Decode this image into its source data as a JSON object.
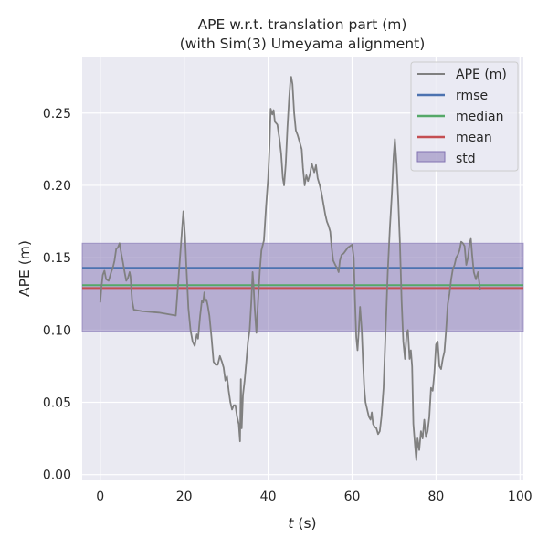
{
  "chart_data": {
    "type": "line",
    "title_line1": "APE w.r.t. translation part (m)",
    "title_line2": "(with Sim(3) Umeyama alignment)",
    "xlabel_var": "t",
    "xlabel_unit": " (s)",
    "ylabel": "APE (m)",
    "xlim": [
      -4.3,
      100.8
    ],
    "ylim": [
      -0.004,
      0.289
    ],
    "xticks": [
      0,
      20,
      40,
      60,
      80,
      100
    ],
    "yticks": [
      0.0,
      0.05,
      0.1,
      0.15,
      0.2,
      0.25
    ],
    "ytick_labels": [
      "0.00",
      "0.05",
      "0.10",
      "0.15",
      "0.20",
      "0.25"
    ],
    "grid": true,
    "legend_position": "top-right",
    "stats": {
      "rmse": 0.143,
      "median": 0.131,
      "mean": 0.129,
      "std_band": [
        0.099,
        0.16
      ]
    },
    "series": [
      {
        "name": "APE (m)",
        "color": "#808080",
        "points": [
          [
            0,
            0.119
          ],
          [
            0.3,
            0.13
          ],
          [
            0.6,
            0.138
          ],
          [
            1,
            0.141
          ],
          [
            1.4,
            0.135
          ],
          [
            2,
            0.134
          ],
          [
            2.6,
            0.14
          ],
          [
            3,
            0.143
          ],
          [
            3.4,
            0.148
          ],
          [
            3.8,
            0.156
          ],
          [
            4.2,
            0.157
          ],
          [
            4.6,
            0.16
          ],
          [
            5,
            0.153
          ],
          [
            5.4,
            0.147
          ],
          [
            5.8,
            0.14
          ],
          [
            6.2,
            0.134
          ],
          [
            6.6,
            0.136
          ],
          [
            7,
            0.14
          ],
          [
            7.2,
            0.137
          ],
          [
            7.6,
            0.12
          ],
          [
            8,
            0.114
          ],
          [
            10,
            0.113
          ],
          [
            14,
            0.112
          ],
          [
            18,
            0.11
          ],
          [
            18.5,
            0.13
          ],
          [
            19,
            0.15
          ],
          [
            19.5,
            0.17
          ],
          [
            19.8,
            0.182
          ],
          [
            20.2,
            0.165
          ],
          [
            20.5,
            0.145
          ],
          [
            21,
            0.115
          ],
          [
            21.5,
            0.1
          ],
          [
            22,
            0.092
          ],
          [
            22.5,
            0.089
          ],
          [
            23,
            0.097
          ],
          [
            23.3,
            0.094
          ],
          [
            23.8,
            0.11
          ],
          [
            24.2,
            0.12
          ],
          [
            24.5,
            0.119
          ],
          [
            24.8,
            0.126
          ],
          [
            25,
            0.12
          ],
          [
            25.3,
            0.121
          ],
          [
            25.6,
            0.117
          ],
          [
            26,
            0.11
          ],
          [
            26.5,
            0.095
          ],
          [
            27,
            0.078
          ],
          [
            27.5,
            0.076
          ],
          [
            28,
            0.076
          ],
          [
            28.5,
            0.082
          ],
          [
            29,
            0.078
          ],
          [
            29.4,
            0.074
          ],
          [
            29.8,
            0.065
          ],
          [
            30.2,
            0.068
          ],
          [
            30.6,
            0.058
          ],
          [
            31,
            0.05
          ],
          [
            31.4,
            0.045
          ],
          [
            31.8,
            0.048
          ],
          [
            32.2,
            0.048
          ],
          [
            32.6,
            0.04
          ],
          [
            33,
            0.035
          ],
          [
            33.3,
            0.023
          ],
          [
            33.5,
            0.066
          ],
          [
            33.7,
            0.032
          ],
          [
            34,
            0.055
          ],
          [
            34.4,
            0.065
          ],
          [
            34.8,
            0.078
          ],
          [
            35.2,
            0.092
          ],
          [
            35.6,
            0.1
          ],
          [
            36,
            0.12
          ],
          [
            36.3,
            0.14
          ],
          [
            36.5,
            0.132
          ],
          [
            36.8,
            0.115
          ],
          [
            37.2,
            0.098
          ],
          [
            37.6,
            0.12
          ],
          [
            38,
            0.14
          ],
          [
            38.4,
            0.155
          ],
          [
            39,
            0.162
          ],
          [
            39.5,
            0.185
          ],
          [
            40,
            0.205
          ],
          [
            40.3,
            0.225
          ],
          [
            40.6,
            0.253
          ],
          [
            41,
            0.249
          ],
          [
            41.3,
            0.252
          ],
          [
            41.6,
            0.244
          ],
          [
            42.2,
            0.242
          ],
          [
            42.7,
            0.232
          ],
          [
            43.1,
            0.222
          ],
          [
            43.5,
            0.205
          ],
          [
            43.8,
            0.2
          ],
          [
            44.2,
            0.215
          ],
          [
            44.6,
            0.24
          ],
          [
            45,
            0.26
          ],
          [
            45.3,
            0.272
          ],
          [
            45.5,
            0.275
          ],
          [
            45.8,
            0.27
          ],
          [
            46.2,
            0.25
          ],
          [
            46.6,
            0.238
          ],
          [
            47,
            0.235
          ],
          [
            47.5,
            0.23
          ],
          [
            48,
            0.225
          ],
          [
            48.3,
            0.212
          ],
          [
            48.7,
            0.2
          ],
          [
            49.1,
            0.207
          ],
          [
            49.5,
            0.203
          ],
          [
            50,
            0.208
          ],
          [
            50.4,
            0.215
          ],
          [
            50.7,
            0.212
          ],
          [
            51,
            0.209
          ],
          [
            51.4,
            0.214
          ],
          [
            51.8,
            0.205
          ],
          [
            52.3,
            0.2
          ],
          [
            52.7,
            0.195
          ],
          [
            53,
            0.19
          ],
          [
            53.3,
            0.185
          ],
          [
            53.6,
            0.18
          ],
          [
            54,
            0.175
          ],
          [
            54.4,
            0.172
          ],
          [
            54.8,
            0.168
          ],
          [
            55.1,
            0.158
          ],
          [
            55.5,
            0.148
          ],
          [
            56,
            0.145
          ],
          [
            56.4,
            0.143
          ],
          [
            56.8,
            0.14
          ],
          [
            57.1,
            0.148
          ],
          [
            57.5,
            0.152
          ],
          [
            58,
            0.153
          ],
          [
            58.5,
            0.155
          ],
          [
            59,
            0.157
          ],
          [
            59.5,
            0.158
          ],
          [
            60,
            0.159
          ],
          [
            60.4,
            0.15
          ],
          [
            60.7,
            0.12
          ],
          [
            61,
            0.095
          ],
          [
            61.3,
            0.086
          ],
          [
            61.6,
            0.1
          ],
          [
            61.9,
            0.116
          ],
          [
            62.3,
            0.1
          ],
          [
            62.6,
            0.078
          ],
          [
            62.9,
            0.06
          ],
          [
            63.2,
            0.05
          ],
          [
            63.6,
            0.045
          ],
          [
            64,
            0.04
          ],
          [
            64.4,
            0.038
          ],
          [
            64.7,
            0.043
          ],
          [
            65,
            0.035
          ],
          [
            65.4,
            0.033
          ],
          [
            65.8,
            0.032
          ],
          [
            66.2,
            0.028
          ],
          [
            66.6,
            0.03
          ],
          [
            67,
            0.04
          ],
          [
            67.5,
            0.06
          ],
          [
            68,
            0.1
          ],
          [
            68.5,
            0.14
          ],
          [
            69,
            0.17
          ],
          [
            69.5,
            0.195
          ],
          [
            69.9,
            0.22
          ],
          [
            70.2,
            0.232
          ],
          [
            70.6,
            0.215
          ],
          [
            71,
            0.19
          ],
          [
            71.4,
            0.16
          ],
          [
            71.8,
            0.12
          ],
          [
            72.2,
            0.092
          ],
          [
            72.6,
            0.08
          ],
          [
            73,
            0.098
          ],
          [
            73.3,
            0.1
          ],
          [
            73.7,
            0.08
          ],
          [
            74,
            0.086
          ],
          [
            74.3,
            0.075
          ],
          [
            74.6,
            0.035
          ],
          [
            75,
            0.02
          ],
          [
            75.3,
            0.01
          ],
          [
            75.6,
            0.025
          ],
          [
            76,
            0.017
          ],
          [
            76.4,
            0.03
          ],
          [
            76.8,
            0.025
          ],
          [
            77.2,
            0.038
          ],
          [
            77.6,
            0.026
          ],
          [
            78,
            0.03
          ],
          [
            78.4,
            0.04
          ],
          [
            78.8,
            0.06
          ],
          [
            79.2,
            0.058
          ],
          [
            79.6,
            0.07
          ],
          [
            80,
            0.09
          ],
          [
            80.4,
            0.092
          ],
          [
            80.8,
            0.075
          ],
          [
            81.2,
            0.073
          ],
          [
            81.6,
            0.08
          ],
          [
            82,
            0.085
          ],
          [
            82.4,
            0.1
          ],
          [
            82.8,
            0.118
          ],
          [
            83.2,
            0.125
          ],
          [
            83.6,
            0.135
          ],
          [
            84,
            0.142
          ],
          [
            84.4,
            0.145
          ],
          [
            84.8,
            0.15
          ],
          [
            85.2,
            0.152
          ],
          [
            85.6,
            0.155
          ],
          [
            86,
            0.161
          ],
          [
            86.4,
            0.16
          ],
          [
            86.8,
            0.158
          ],
          [
            87.2,
            0.145
          ],
          [
            87.6,
            0.15
          ],
          [
            88,
            0.16
          ],
          [
            88.3,
            0.163
          ],
          [
            88.6,
            0.152
          ],
          [
            89,
            0.14
          ],
          [
            89.5,
            0.135
          ],
          [
            90,
            0.14
          ],
          [
            90.5,
            0.128
          ]
        ]
      },
      {
        "name": "rmse",
        "color": "#4c72b0"
      },
      {
        "name": "median",
        "color": "#55a868"
      },
      {
        "name": "mean",
        "color": "#c44e52"
      },
      {
        "name": "std",
        "color": "#8172b2"
      }
    ]
  }
}
